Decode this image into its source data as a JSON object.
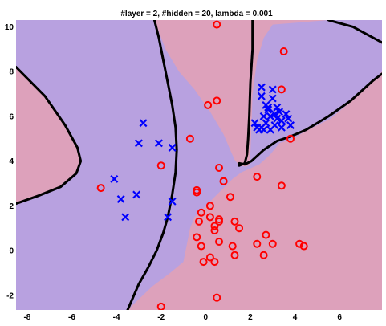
{
  "chart_data": {
    "type": "scatter",
    "title": "#layer = 2, #hidden = 20, lambda = 0.001",
    "xlabel": "",
    "ylabel": "",
    "xlim": [
      -8.5,
      7.9
    ],
    "ylim": [
      -2.65,
      10.3
    ],
    "x_ticks": [
      -8,
      -6,
      -4,
      -2,
      0,
      2,
      4,
      6
    ],
    "y_ticks": [
      -2,
      0,
      2,
      4,
      6,
      8,
      10
    ],
    "grid": false,
    "legend": "none",
    "colors": {
      "purple_region": "#b8a1e0",
      "pink_region": "#dda1bb",
      "boundary": "#000000",
      "circle": "#ff0000",
      "cross": "#0000ff"
    },
    "regions": [
      {
        "class": "cross",
        "color": "purple",
        "polygon": [
          [
            -8.5,
            10.3
          ],
          [
            -2.3,
            10.3
          ],
          [
            -1.8,
            9
          ],
          [
            -1.2,
            8
          ],
          [
            -0.5,
            7.2
          ],
          [
            0.2,
            6.2
          ],
          [
            0.8,
            5.2
          ],
          [
            1.1,
            4.5
          ],
          [
            1.3,
            4.05
          ],
          [
            1.5,
            3.8
          ],
          [
            1.8,
            3.75
          ],
          [
            2.0,
            3.85
          ],
          [
            2.0,
            4.3
          ],
          [
            2.05,
            5.5
          ],
          [
            2.1,
            7
          ],
          [
            2.3,
            8.5
          ],
          [
            2.6,
            9.5
          ],
          [
            3.0,
            10.1
          ],
          [
            5.5,
            10.3
          ],
          [
            7.9,
            10.3
          ],
          [
            7.9,
            8
          ],
          [
            6.8,
            6.9
          ],
          [
            5.6,
            5.9
          ],
          [
            4.6,
            5.4
          ],
          [
            3.8,
            4.95
          ],
          [
            3.3,
            4.8
          ],
          [
            2.9,
            4.3
          ],
          [
            2.4,
            3.85
          ],
          [
            1.6,
            3.5
          ],
          [
            1.2,
            3.2
          ],
          [
            0.8,
            2.8
          ],
          [
            0.3,
            2.3
          ],
          [
            -0.1,
            1.9
          ],
          [
            -0.5,
            1.5
          ],
          [
            -0.7,
            1.0
          ],
          [
            -0.8,
            0.5
          ],
          [
            -0.9,
            0
          ],
          [
            -1.0,
            -0.5
          ],
          [
            -1.6,
            -1.0
          ],
          [
            -2.4,
            -1.6
          ],
          [
            -3.5,
            -2.65
          ],
          [
            -8.5,
            -2.65
          ],
          [
            -8.5,
            2.1
          ],
          [
            -7.5,
            2.45
          ],
          [
            -6.5,
            2.85
          ],
          [
            -5.8,
            3.45
          ],
          [
            -5.6,
            4.0
          ],
          [
            -5.75,
            4.6
          ],
          [
            -6.3,
            5.6
          ],
          [
            -7.2,
            6.9
          ],
          [
            -8.5,
            8.2
          ]
        ]
      }
    ],
    "boundaries": [
      [
        [
          -8.5,
          8.2
        ],
        [
          -7.2,
          6.9
        ],
        [
          -6.3,
          5.6
        ],
        [
          -5.75,
          4.6
        ],
        [
          -5.6,
          4.0
        ],
        [
          -5.8,
          3.45
        ],
        [
          -6.5,
          2.85
        ],
        [
          -7.5,
          2.45
        ],
        [
          -8.5,
          2.1
        ]
      ],
      [
        [
          -2.3,
          10.3
        ],
        [
          -2.1,
          9.5
        ],
        [
          -1.9,
          8.5
        ],
        [
          -1.7,
          7.5
        ],
        [
          -1.5,
          6.5
        ],
        [
          -1.35,
          5.5
        ],
        [
          -1.3,
          4.5
        ],
        [
          -1.35,
          3.5
        ],
        [
          -1.5,
          2.5
        ],
        [
          -1.7,
          1.5
        ],
        [
          -1.9,
          0.8
        ],
        [
          -2.2,
          0
        ],
        [
          -2.6,
          -0.8
        ],
        [
          -3.0,
          -1.5
        ],
        [
          -3.5,
          -2.65
        ]
      ],
      [
        [
          2.1,
          10.3
        ],
        [
          2.1,
          9
        ],
        [
          2.0,
          7.5
        ],
        [
          1.95,
          6
        ],
        [
          1.9,
          5
        ],
        [
          1.85,
          4.3
        ],
        [
          1.75,
          3.9
        ],
        [
          1.5,
          3.8
        ],
        [
          1.5,
          3.9
        ],
        [
          1.75,
          3.85
        ],
        [
          2.05,
          4.0
        ],
        [
          2.6,
          4.5
        ],
        [
          3.2,
          4.9
        ],
        [
          3.8,
          5.1
        ],
        [
          4.5,
          5.4
        ],
        [
          5.5,
          6.0
        ],
        [
          6.5,
          6.7
        ],
        [
          7.5,
          7.6
        ],
        [
          7.9,
          7.9
        ]
      ],
      [
        [
          5.5,
          10.3
        ],
        [
          6.6,
          10.0
        ],
        [
          7.9,
          9.3
        ]
      ]
    ],
    "series": [
      {
        "marker": "o",
        "x": [
          0.5,
          3.5,
          0.5,
          0.1,
          -0.7,
          3.4,
          3.8,
          -2.0,
          0.6,
          0.8,
          0.8,
          2.3,
          -4.7,
          -0.4,
          -0.4,
          3.4,
          1.1,
          0.2,
          0.6,
          0.6,
          0.4,
          0.2,
          -0.2,
          1.3,
          1.5,
          -0.3,
          -0.4,
          0.4,
          -0.2,
          2.7,
          0.6,
          3.0,
          1.2,
          2.3,
          2.6,
          0.2,
          1.3,
          -0.1,
          4.2,
          4.4,
          0.4,
          0.5,
          -2.0
        ],
        "y": [
          10.1,
          8.9,
          6.7,
          6.5,
          5.0,
          7.2,
          5.0,
          3.8,
          3.7,
          3.1,
          3.1,
          3.3,
          2.8,
          2.7,
          2.6,
          2.9,
          2.4,
          2.0,
          1.4,
          1.3,
          1.1,
          1.5,
          1.7,
          1.3,
          1.0,
          1.3,
          0.6,
          0.9,
          0.2,
          0.7,
          0.4,
          0.3,
          0.2,
          0.3,
          -0.2,
          -0.3,
          -0.2,
          -0.5,
          0.3,
          0.2,
          -0.5,
          -2.1,
          -2.5
        ]
      },
      {
        "marker": "x",
        "x": [
          2.5,
          2.5,
          3.0,
          3.0,
          3.2,
          2.7,
          2.8,
          3.3,
          2.6,
          3.1,
          2.9,
          3.7,
          3.4,
          2.2,
          2.5,
          2.7,
          3.1,
          3.8,
          3.4,
          2.9,
          2.4,
          3.6,
          2.8,
          3.2,
          2.6,
          2.3,
          -2.8,
          -3.0,
          -2.1,
          -1.5,
          -4.1,
          -3.8,
          -3.1,
          -1.5,
          -1.7,
          -3.6
        ],
        "y": [
          7.3,
          6.9,
          7.2,
          6.8,
          6.4,
          6.5,
          6.3,
          6.2,
          6.0,
          6.1,
          6.0,
          5.9,
          5.8,
          5.7,
          5.5,
          5.7,
          5.6,
          5.6,
          5.5,
          5.4,
          5.4,
          6.1,
          6.4,
          5.9,
          5.4,
          5.5,
          5.7,
          4.8,
          4.8,
          4.6,
          3.2,
          2.3,
          2.5,
          2.2,
          1.5,
          1.5
        ]
      }
    ]
  }
}
